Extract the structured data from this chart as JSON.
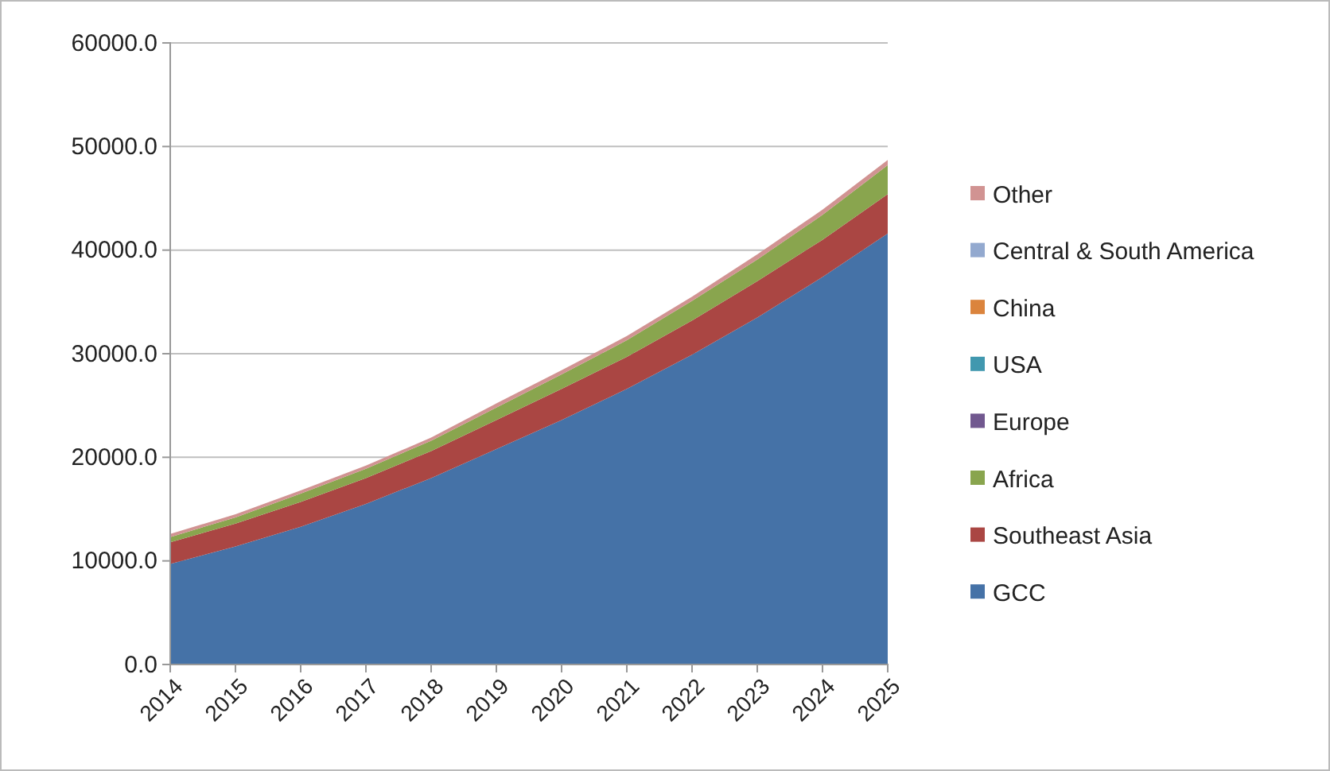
{
  "chart_data": {
    "type": "area",
    "stacked": true,
    "categories": [
      "2014",
      "2015",
      "2016",
      "2017",
      "2018",
      "2019",
      "2020",
      "2021",
      "2022",
      "2023",
      "2024",
      "2025"
    ],
    "series": [
      {
        "name": "GCC",
        "color": "#4572a7",
        "values": [
          9700,
          11400,
          13300,
          15500,
          18000,
          20800,
          23600,
          26600,
          29900,
          33500,
          37400,
          41600
        ]
      },
      {
        "name": "Southeast Asia",
        "color": "#aa4643",
        "values": [
          2100,
          2200,
          2400,
          2500,
          2600,
          2800,
          3000,
          3100,
          3300,
          3500,
          3600,
          3800
        ]
      },
      {
        "name": "Africa",
        "color": "#89a54e",
        "values": [
          500,
          600,
          800,
          900,
          1000,
          1200,
          1400,
          1600,
          1900,
          2100,
          2400,
          2800
        ]
      },
      {
        "name": "Europe",
        "color": "#71588f",
        "values": [
          null,
          null,
          null,
          null,
          null,
          null,
          null,
          null,
          null,
          null,
          null,
          null
        ]
      },
      {
        "name": "USA",
        "color": "#4198af",
        "values": [
          null,
          null,
          null,
          null,
          null,
          null,
          null,
          null,
          null,
          null,
          null,
          null
        ]
      },
      {
        "name": "China",
        "color": "#db843d",
        "values": [
          null,
          null,
          null,
          null,
          null,
          null,
          null,
          null,
          null,
          null,
          null,
          null
        ]
      },
      {
        "name": "Central & South America",
        "color": "#93a9cf",
        "values": [
          null,
          null,
          null,
          null,
          null,
          null,
          null,
          null,
          null,
          null,
          null,
          null
        ]
      },
      {
        "name": "Other",
        "color": "#d19392",
        "values": [
          300,
          300,
          300,
          300,
          300,
          400,
          400,
          400,
          400,
          500,
          500,
          500
        ]
      }
    ],
    "ylim": [
      0,
      60000
    ],
    "yticks": [
      {
        "value": 0,
        "label": "0.0"
      },
      {
        "value": 10000,
        "label": "10000.0"
      },
      {
        "value": 20000,
        "label": "20000.0"
      },
      {
        "value": 30000,
        "label": "30000.0"
      },
      {
        "value": 40000,
        "label": "40000.0"
      },
      {
        "value": 50000,
        "label": "50000.0"
      },
      {
        "value": 60000,
        "label": "60000.0"
      }
    ],
    "grid": "y",
    "legend": "right"
  }
}
